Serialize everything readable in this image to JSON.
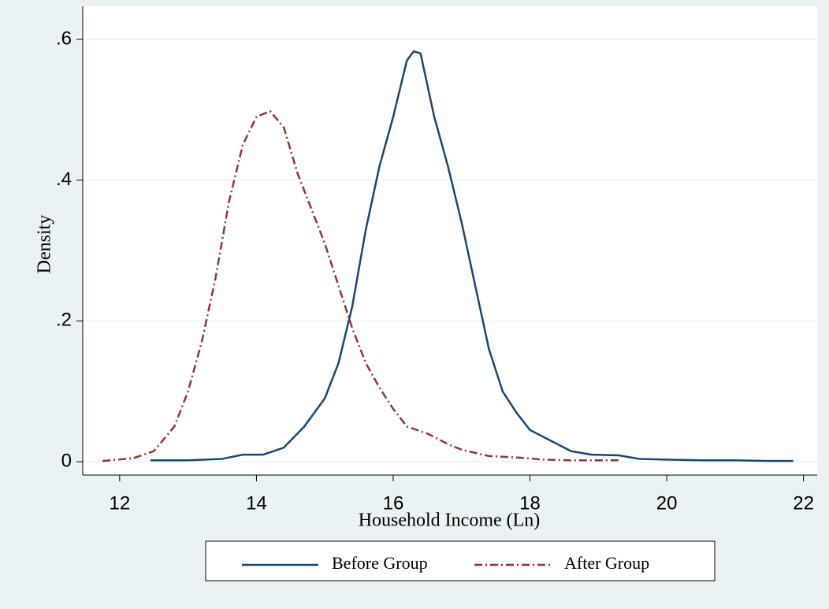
{
  "chart_data": {
    "type": "line",
    "x_label": "Household Income (Ln)",
    "y_label": "Density",
    "xlim": [
      11.46,
      22.2
    ],
    "ylim": [
      -0.019,
      0.647
    ],
    "xticks": [
      12,
      14,
      16,
      18,
      20,
      22
    ],
    "yticks": [
      0,
      {
        "value": 0.2,
        "label": ".2"
      },
      {
        "value": 0.4,
        "label": ".4"
      },
      {
        "value": 0.6,
        "label": ".6"
      }
    ],
    "grid": true,
    "legend_position": "bottom",
    "series": [
      {
        "name": "Before Group",
        "color": "#1a476f",
        "dash": "solid",
        "x": [
          12.45,
          13,
          13.5,
          13.8,
          14.1,
          14.4,
          14.7,
          15.0,
          15.2,
          15.4,
          15.6,
          15.8,
          16.0,
          16.2,
          16.3,
          16.4,
          16.6,
          16.8,
          17.0,
          17.2,
          17.4,
          17.6,
          17.8,
          18.0,
          18.3,
          18.6,
          18.9,
          19.3,
          19.6,
          20,
          20.5,
          21,
          21.5,
          21.85
        ],
        "values": [
          0.002,
          0.002,
          0.004,
          0.01,
          0.01,
          0.02,
          0.05,
          0.09,
          0.14,
          0.22,
          0.33,
          0.42,
          0.49,
          0.57,
          0.583,
          0.58,
          0.49,
          0.42,
          0.34,
          0.25,
          0.16,
          0.1,
          0.07,
          0.045,
          0.03,
          0.015,
          0.01,
          0.009,
          0.004,
          0.003,
          0.002,
          0.002,
          0.001,
          0.001
        ]
      },
      {
        "name": "After Group",
        "color": "#90353b",
        "dash": "dashdot",
        "x": [
          11.75,
          12.2,
          12.5,
          12.8,
          13.0,
          13.2,
          13.4,
          13.6,
          13.8,
          14.0,
          14.2,
          14.4,
          14.6,
          14.8,
          15.0,
          15.2,
          15.4,
          15.6,
          15.8,
          16.0,
          16.2,
          16.5,
          16.8,
          17.0,
          17.4,
          17.8,
          18.2,
          18.6,
          19.3
        ],
        "values": [
          0.001,
          0.005,
          0.015,
          0.05,
          0.1,
          0.17,
          0.26,
          0.37,
          0.45,
          0.49,
          0.498,
          0.475,
          0.41,
          0.36,
          0.31,
          0.25,
          0.19,
          0.14,
          0.105,
          0.075,
          0.05,
          0.04,
          0.025,
          0.017,
          0.008,
          0.006,
          0.003,
          0.002,
          0.002
        ]
      }
    ]
  }
}
